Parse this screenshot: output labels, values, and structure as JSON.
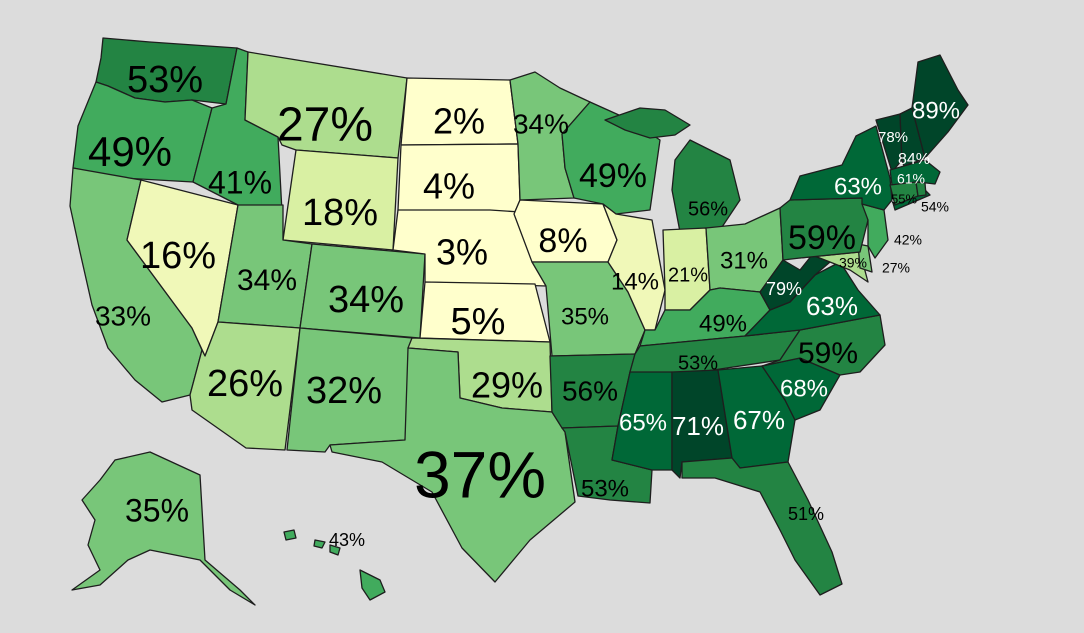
{
  "colors": {
    "background": "#dcdcdc",
    "scale": [
      "#ffffcc",
      "#f0f8b8",
      "#d9f0a3",
      "#addd8e",
      "#78c679",
      "#41ab5d",
      "#238443",
      "#006837",
      "#004529"
    ]
  },
  "states": [
    {
      "id": "WA",
      "value": "53%",
      "fill": "#238443",
      "text_color": "#000000"
    },
    {
      "id": "OR",
      "value": "49%",
      "fill": "#41ab5d",
      "text_color": "#000000"
    },
    {
      "id": "CA",
      "value": "33%",
      "fill": "#78c679",
      "text_color": "#000000"
    },
    {
      "id": "NV",
      "value": "16%",
      "fill": "#f0f8b8",
      "text_color": "#000000"
    },
    {
      "id": "ID",
      "value": "41%",
      "fill": "#41ab5d",
      "text_color": "#000000"
    },
    {
      "id": "MT",
      "value": "27%",
      "fill": "#addd8e",
      "text_color": "#000000"
    },
    {
      "id": "WY",
      "value": "18%",
      "fill": "#d9f0a3",
      "text_color": "#000000"
    },
    {
      "id": "UT",
      "value": "34%",
      "fill": "#78c679",
      "text_color": "#000000"
    },
    {
      "id": "CO",
      "value": "34%",
      "fill": "#78c679",
      "text_color": "#000000"
    },
    {
      "id": "AZ",
      "value": "26%",
      "fill": "#addd8e",
      "text_color": "#000000"
    },
    {
      "id": "NM",
      "value": "32%",
      "fill": "#78c679",
      "text_color": "#000000"
    },
    {
      "id": "ND",
      "value": "2%",
      "fill": "#ffffcc",
      "text_color": "#000000"
    },
    {
      "id": "SD",
      "value": "4%",
      "fill": "#ffffcc",
      "text_color": "#000000"
    },
    {
      "id": "NE",
      "value": "3%",
      "fill": "#ffffcc",
      "text_color": "#000000"
    },
    {
      "id": "KS",
      "value": "5%",
      "fill": "#ffffcc",
      "text_color": "#000000"
    },
    {
      "id": "OK",
      "value": "29%",
      "fill": "#addd8e",
      "text_color": "#000000"
    },
    {
      "id": "TX",
      "value": "37%",
      "fill": "#78c679",
      "text_color": "#000000"
    },
    {
      "id": "MN",
      "value": "34%",
      "fill": "#78c679",
      "text_color": "#000000"
    },
    {
      "id": "IA",
      "value": "8%",
      "fill": "#ffffcc",
      "text_color": "#000000"
    },
    {
      "id": "MO",
      "value": "35%",
      "fill": "#78c679",
      "text_color": "#000000"
    },
    {
      "id": "AR",
      "value": "56%",
      "fill": "#238443",
      "text_color": "#000000"
    },
    {
      "id": "LA",
      "value": "53%",
      "fill": "#238443",
      "text_color": "#000000"
    },
    {
      "id": "WI",
      "value": "49%",
      "fill": "#41ab5d",
      "text_color": "#000000"
    },
    {
      "id": "IL",
      "value": "14%",
      "fill": "#f0f8b8",
      "text_color": "#000000"
    },
    {
      "id": "MI",
      "value": "56%",
      "fill": "#238443",
      "text_color": "#000000"
    },
    {
      "id": "IN",
      "value": "21%",
      "fill": "#d9f0a3",
      "text_color": "#000000"
    },
    {
      "id": "OH",
      "value": "31%",
      "fill": "#78c679",
      "text_color": "#000000"
    },
    {
      "id": "KY",
      "value": "49%",
      "fill": "#41ab5d",
      "text_color": "#000000"
    },
    {
      "id": "TN",
      "value": "53%",
      "fill": "#238443",
      "text_color": "#000000"
    },
    {
      "id": "MS",
      "value": "65%",
      "fill": "#006837",
      "text_color": "#ffffff"
    },
    {
      "id": "AL",
      "value": "71%",
      "fill": "#004529",
      "text_color": "#ffffff"
    },
    {
      "id": "GA",
      "value": "67%",
      "fill": "#006837",
      "text_color": "#ffffff"
    },
    {
      "id": "FL",
      "value": "51%",
      "fill": "#238443",
      "text_color": "#000000"
    },
    {
      "id": "SC",
      "value": "68%",
      "fill": "#006837",
      "text_color": "#ffffff"
    },
    {
      "id": "NC",
      "value": "59%",
      "fill": "#238443",
      "text_color": "#000000"
    },
    {
      "id": "VA",
      "value": "63%",
      "fill": "#006837",
      "text_color": "#ffffff"
    },
    {
      "id": "WV",
      "value": "79%",
      "fill": "#004529",
      "text_color": "#ffffff"
    },
    {
      "id": "PA",
      "value": "59%",
      "fill": "#238443",
      "text_color": "#000000"
    },
    {
      "id": "NY",
      "value": "63%",
      "fill": "#006837",
      "text_color": "#ffffff"
    },
    {
      "id": "VT",
      "value": "78%",
      "fill": "#004529",
      "text_color": "#ffffff"
    },
    {
      "id": "NH",
      "value": "84%",
      "fill": "#004529",
      "text_color": "#ffffff"
    },
    {
      "id": "ME",
      "value": "89%",
      "fill": "#004529",
      "text_color": "#ffffff"
    },
    {
      "id": "MA",
      "value": "61%",
      "fill": "#006837",
      "text_color": "#ffffff"
    },
    {
      "id": "CT",
      "value": "55%",
      "fill": "#238443",
      "text_color": "#000000"
    },
    {
      "id": "RI",
      "value": "54%",
      "fill": "#238443",
      "text_color": "#000000"
    },
    {
      "id": "NJ",
      "value": "42%",
      "fill": "#41ab5d",
      "text_color": "#000000"
    },
    {
      "id": "DE",
      "value": "39%",
      "fill": "#78c679",
      "text_color": "#000000"
    },
    {
      "id": "MD",
      "value": "27%",
      "fill": "#addd8e",
      "text_color": "#000000"
    },
    {
      "id": "AK",
      "value": "35%",
      "fill": "#78c679",
      "text_color": "#000000"
    },
    {
      "id": "HI",
      "value": "43%",
      "fill": "#41ab5d",
      "text_color": "#000000"
    }
  ]
}
